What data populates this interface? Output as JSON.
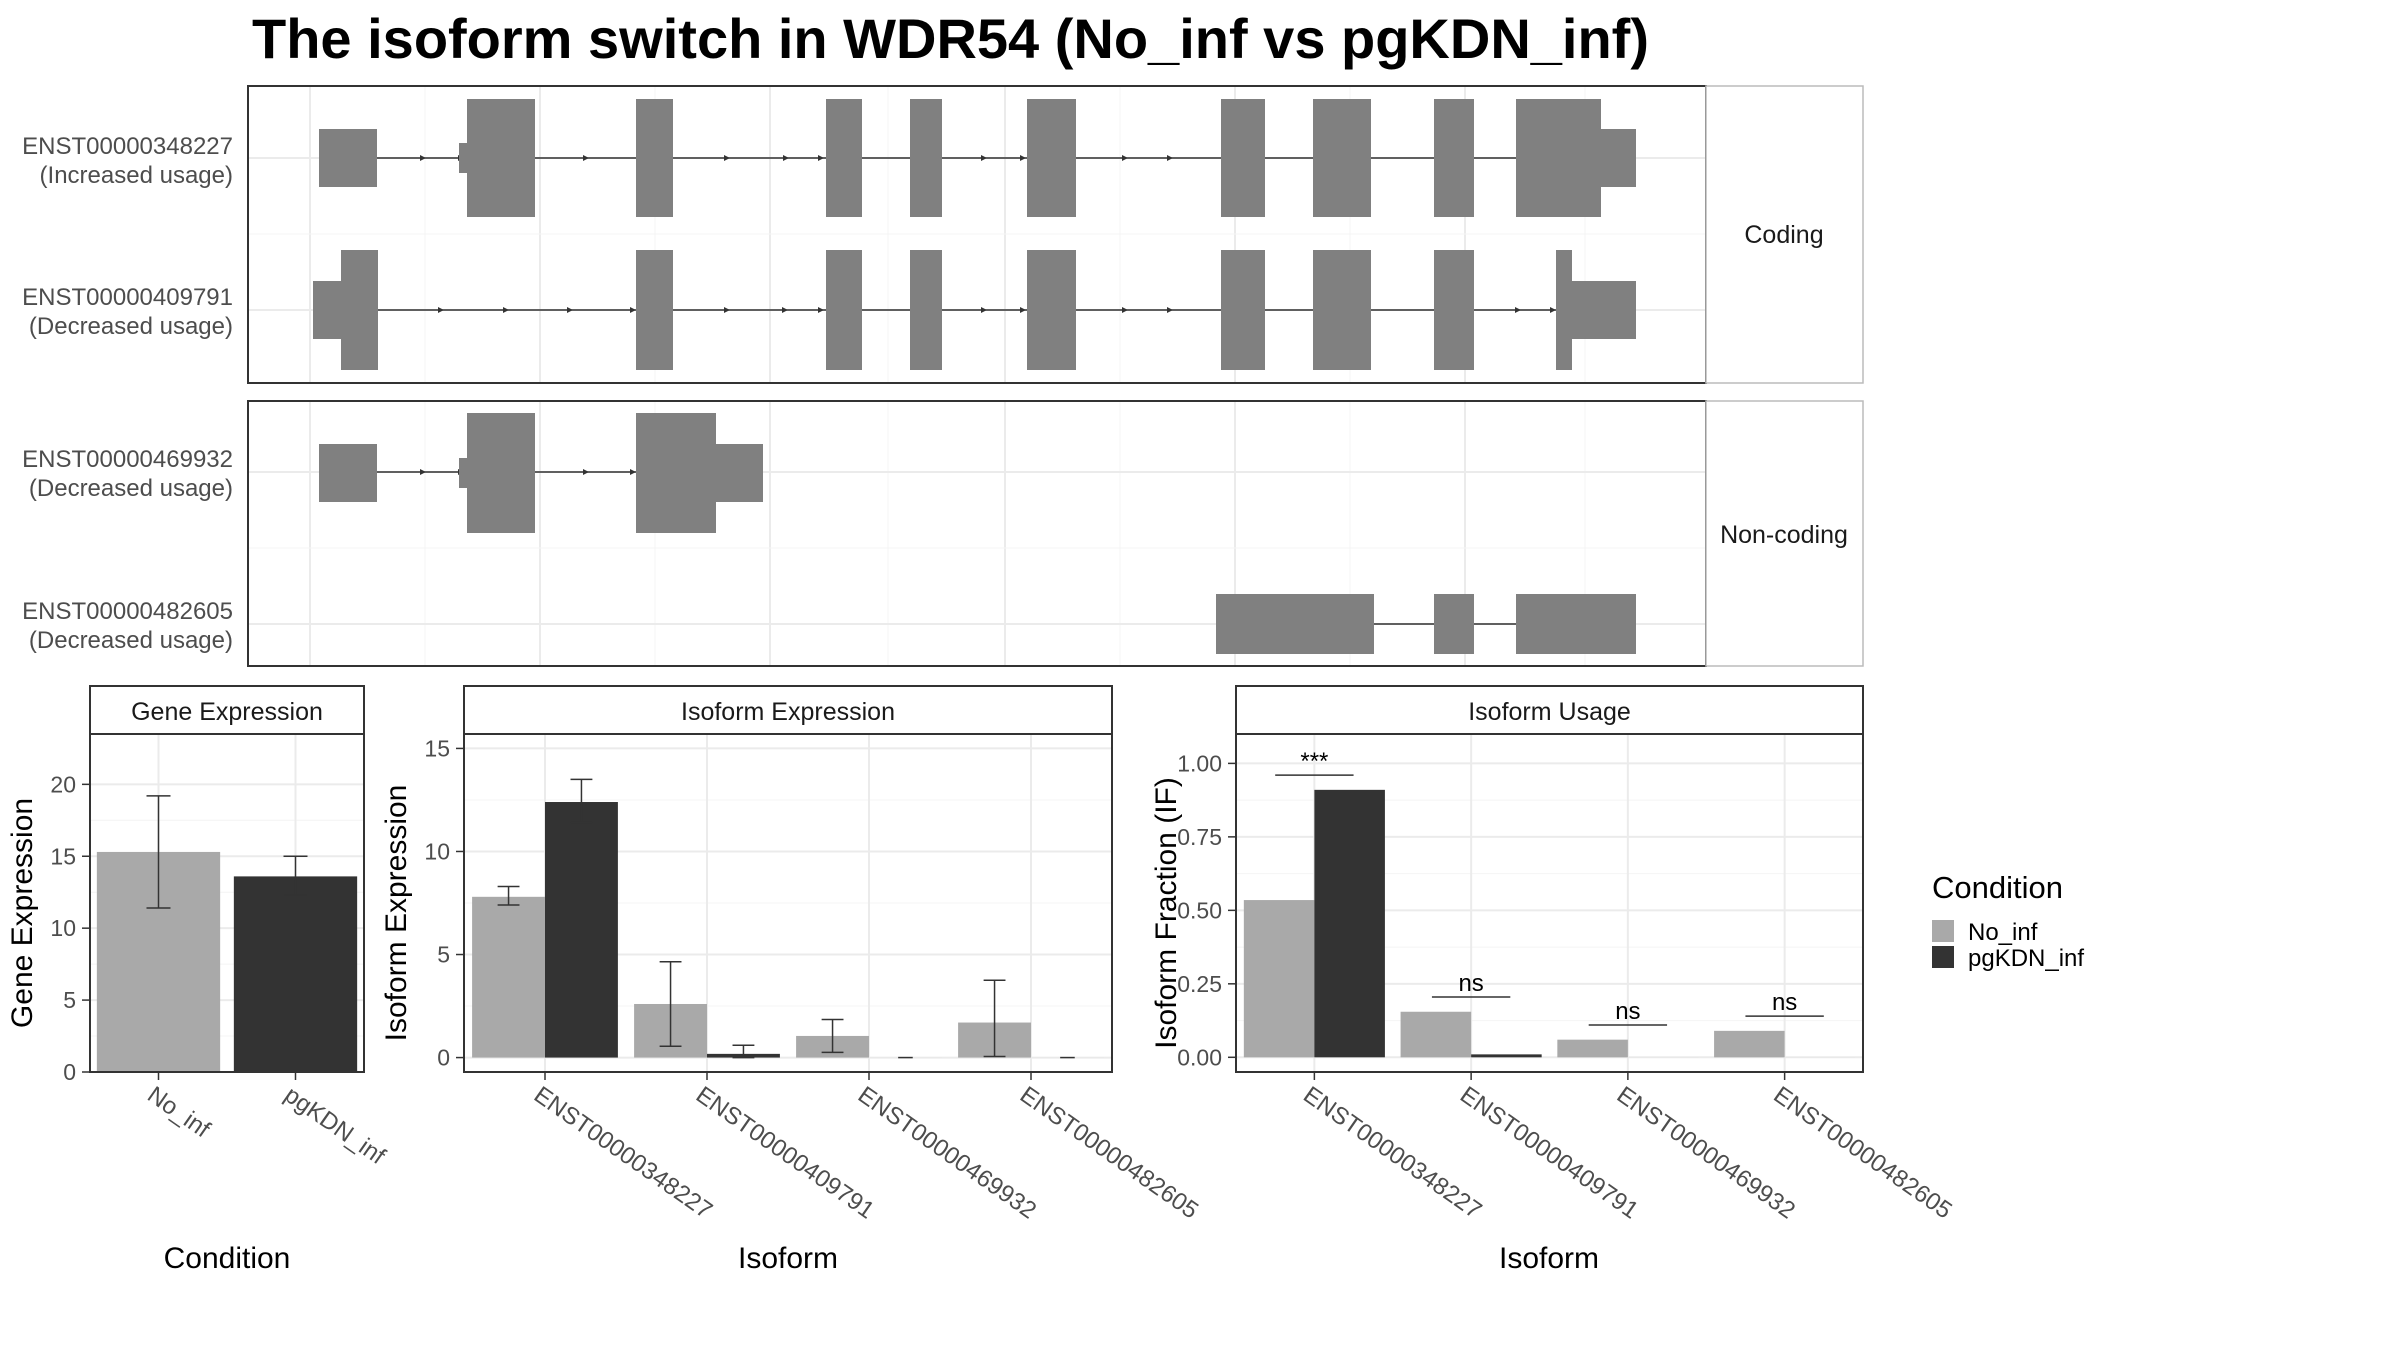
{
  "title": "The isoform switch in WDR54 (No_inf vs pgKDN_inf)",
  "colors": {
    "No_inf": "#A9A9A9",
    "pgKDN_inf": "#333333",
    "exon": "#808080",
    "grid": "#EBEBEB",
    "strip_bg": "#FFFFFF",
    "panel_border": "#333333"
  },
  "legend": {
    "title": "Condition",
    "entries": [
      "No_inf",
      "pgKDN_inf"
    ]
  },
  "structure_panels": [
    {
      "label": "Coding",
      "transcripts": [
        {
          "id": "ENST00000348227",
          "note": "(Increased usage)"
        },
        {
          "id": "ENST00000409791",
          "note": "(Decreased usage)"
        }
      ]
    },
    {
      "label": "Non-coding",
      "transcripts": [
        {
          "id": "ENST00000469932",
          "note": "(Decreased usage)"
        },
        {
          "id": "ENST00000482605",
          "note": "(Decreased usage)"
        }
      ]
    }
  ],
  "chart_data": [
    {
      "type": "bar",
      "title": "Gene Expression",
      "xlabel": "Condition",
      "ylabel": "Gene Expression",
      "ylim": [
        0,
        23.5
      ],
      "yticks": [
        0,
        5,
        10,
        15,
        20
      ],
      "categories": [
        "No_inf",
        "pgKDN_inf"
      ],
      "values": [
        15.3,
        13.6
      ],
      "err_low": [
        11.4,
        12.3
      ],
      "err_high": [
        19.2,
        15.0
      ],
      "grid": true
    },
    {
      "type": "bar",
      "title": "Isoform Expression",
      "xlabel": "Isoform",
      "ylabel": "Isoform Expression",
      "ylim": [
        -0.7,
        15.7
      ],
      "yticks": [
        0,
        5,
        10,
        15
      ],
      "categories": [
        "ENST00000348227",
        "ENST00000409791",
        "ENST00000469932",
        "ENST00000482605"
      ],
      "series": [
        {
          "name": "No_inf",
          "values": [
            7.8,
            2.6,
            1.05,
            1.7
          ],
          "err_low": [
            7.4,
            0.55,
            0.25,
            0.05
          ],
          "err_high": [
            8.3,
            4.65,
            1.85,
            3.75
          ]
        },
        {
          "name": "pgKDN_inf",
          "values": [
            12.4,
            0.18,
            0.0,
            0.0
          ],
          "err_low": [
            11.4,
            0.0,
            0.0,
            0.0
          ],
          "err_high": [
            13.5,
            0.6,
            0.0,
            0.0
          ]
        }
      ],
      "grid": true
    },
    {
      "type": "bar",
      "title": "Isoform Usage",
      "xlabel": "Isoform",
      "ylabel": "Isoform Fraction (IF)",
      "ylim": [
        -0.05,
        1.1
      ],
      "yticks": [
        "0.00",
        "0.25",
        "0.50",
        "0.75",
        "1.00"
      ],
      "categories": [
        "ENST00000348227",
        "ENST00000409791",
        "ENST00000469932",
        "ENST00000482605"
      ],
      "series": [
        {
          "name": "No_inf",
          "values": [
            0.535,
            0.155,
            0.06,
            0.09
          ]
        },
        {
          "name": "pgKDN_inf",
          "values": [
            0.91,
            0.01,
            0.0,
            0.0
          ]
        }
      ],
      "annotations": [
        {
          "category": "ENST00000348227",
          "text": "***",
          "y": 0.96
        },
        {
          "category": "ENST00000409791",
          "text": "ns",
          "y": 0.205
        },
        {
          "category": "ENST00000469932",
          "text": "ns",
          "y": 0.11
        },
        {
          "category": "ENST00000482605",
          "text": "ns",
          "y": 0.14
        }
      ],
      "grid": true
    }
  ]
}
